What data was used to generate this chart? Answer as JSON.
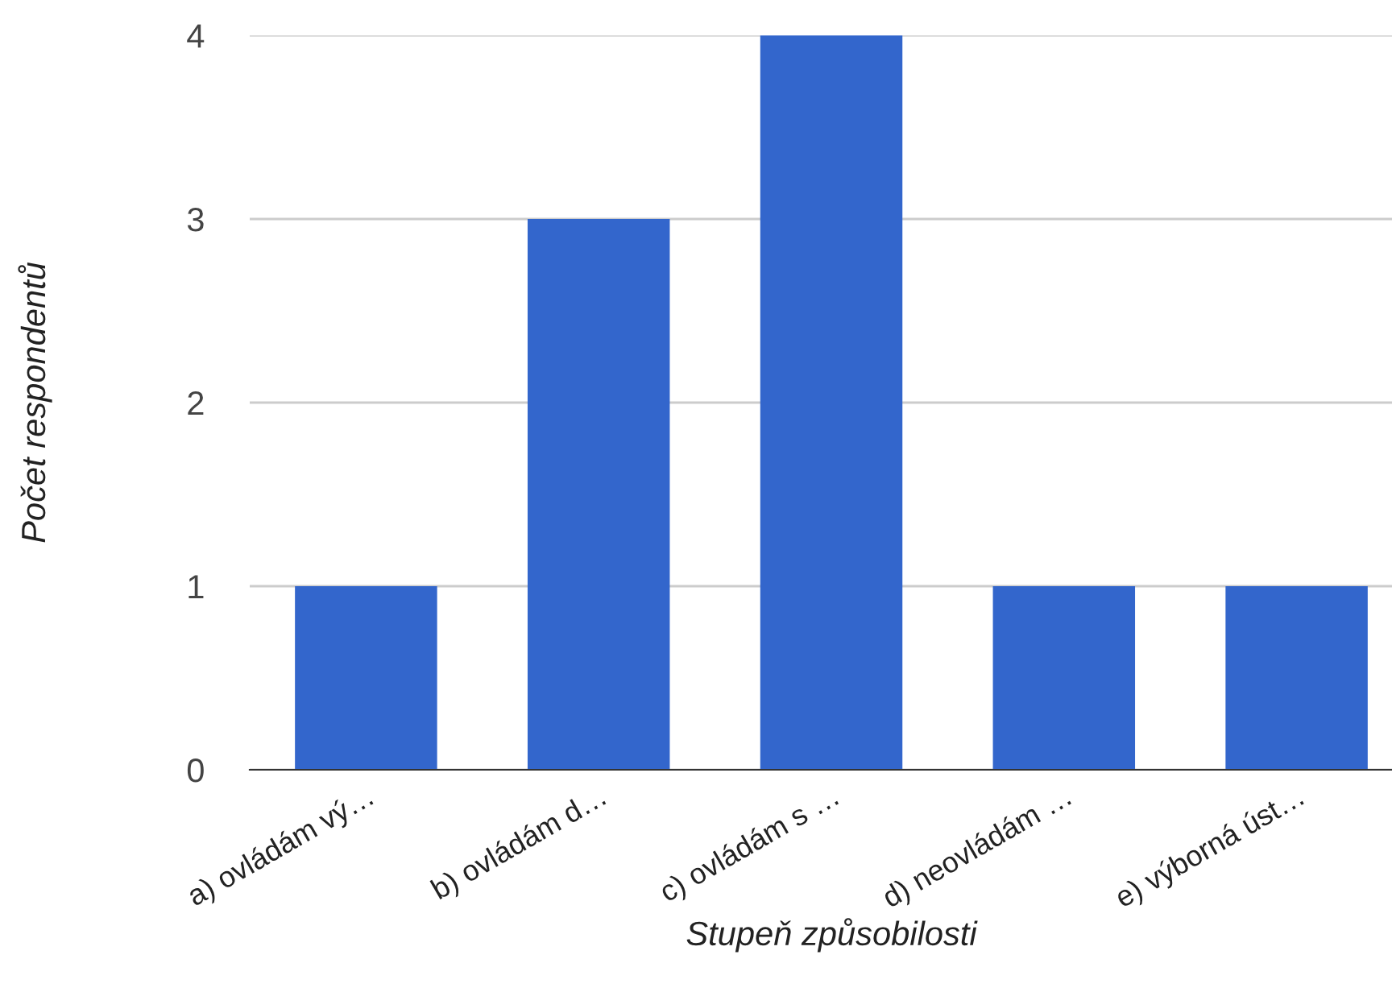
{
  "chart_data": {
    "type": "bar",
    "categories": [
      "a) ovládám vý…",
      "b) ovládám d…",
      "c) ovládám s …",
      "d) neovládám …",
      "e) výborná úst…"
    ],
    "values": [
      1,
      3,
      4,
      1,
      1
    ],
    "color": "#3366cc",
    "xlabel": "Stupeň způsobilosti",
    "ylabel": "Počet respondentů",
    "ylim": [
      0,
      4
    ],
    "yticks": [
      0,
      1,
      2,
      3,
      4
    ],
    "grid": "y",
    "legend": false
  }
}
